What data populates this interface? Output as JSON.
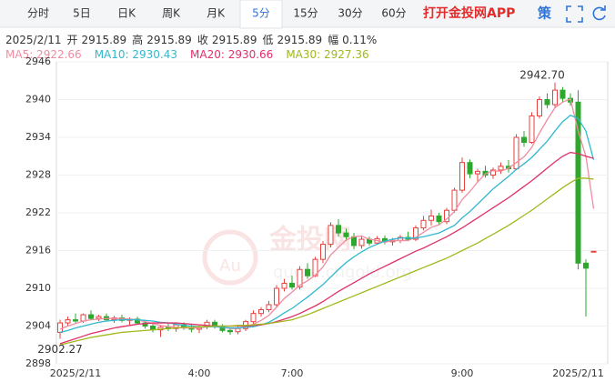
{
  "toolbar": {
    "tabs": [
      "分时",
      "5日",
      "日K",
      "周K",
      "月K",
      "5分",
      "15分",
      "30分",
      "60分"
    ],
    "active_tab": 5,
    "app_link": "打开金投网APP",
    "strategy": "策"
  },
  "info": {
    "date": "2025/2/11",
    "fields": [
      {
        "label": "开",
        "value": "2915.89"
      },
      {
        "label": "高",
        "value": "2915.89"
      },
      {
        "label": "收",
        "value": "2915.89"
      },
      {
        "label": "低",
        "value": "2915.89"
      },
      {
        "label": "幅",
        "value": "0.11%"
      }
    ]
  },
  "watermark": {
    "logo": "Au",
    "name": "金投网",
    "url": "quote.cngold.org"
  },
  "chart_data": {
    "type": "candlestick",
    "categories": [
      null,
      null,
      "2025/2/11",
      null,
      null,
      null,
      null,
      null,
      null,
      null,
      null,
      null,
      null,
      null,
      null,
      null,
      null,
      null,
      "4:00",
      null,
      null,
      null,
      null,
      null,
      null,
      null,
      null,
      null,
      null,
      null,
      "7:00",
      null,
      null,
      null,
      null,
      null,
      null,
      null,
      null,
      null,
      null,
      null,
      null,
      null,
      null,
      null,
      null,
      null,
      null,
      null,
      null,
      null,
      "9:00",
      null,
      null,
      null,
      null,
      null,
      null,
      null,
      null,
      null,
      null,
      null,
      null,
      null,
      null,
      "2025/2/11",
      null,
      null
    ],
    "candles": [
      [
        2903,
        2905,
        2902,
        2904.5
      ],
      [
        2904.5,
        2905.5,
        2904,
        2905
      ],
      [
        2905,
        2906,
        2904.5,
        2904.8
      ],
      [
        2904.8,
        2906,
        2904.5,
        2905.8
      ],
      [
        2905.8,
        2906.5,
        2905,
        2905.2
      ],
      [
        2905.2,
        2905.8,
        2904.8,
        2905.5
      ],
      [
        2905.5,
        2906,
        2904.8,
        2905
      ],
      [
        2905,
        2905.6,
        2904.5,
        2905.3
      ],
      [
        2905.3,
        2905.8,
        2904.6,
        2904.9
      ],
      [
        2904.9,
        2905.4,
        2904.2,
        2905.1
      ],
      [
        2905.1,
        2905.5,
        2904.3,
        2904.5
      ],
      [
        2904.5,
        2905,
        2903.6,
        2904
      ],
      [
        2904,
        2904.5,
        2903,
        2903.4
      ],
      [
        2903.4,
        2904,
        2902.27,
        2903.8
      ],
      [
        2903.8,
        2904.4,
        2903.2,
        2903.6
      ],
      [
        2903.6,
        2904.5,
        2903.1,
        2904.2
      ],
      [
        2904.2,
        2904.6,
        2903.4,
        2903.7
      ],
      [
        2903.7,
        2904.2,
        2903,
        2903.5
      ],
      [
        2903.5,
        2904.1,
        2902.9,
        2903.9
      ],
      [
        2903.9,
        2905,
        2903.5,
        2904.6
      ],
      [
        2904.6,
        2905,
        2903.6,
        2903.9
      ],
      [
        2903.9,
        2904.3,
        2903,
        2903.3
      ],
      [
        2903.3,
        2903.8,
        2902.6,
        2903.1
      ],
      [
        2903.1,
        2903.9,
        2902.7,
        2903.6
      ],
      [
        2903.6,
        2905,
        2903.2,
        2904.7
      ],
      [
        2904.7,
        2906.5,
        2904.4,
        2906
      ],
      [
        2906,
        2907,
        2905.5,
        2906.6
      ],
      [
        2906.6,
        2908,
        2906.2,
        2907.4
      ],
      [
        2907.4,
        2910.5,
        2907,
        2910
      ],
      [
        2910,
        2911.5,
        2909.5,
        2910.8
      ],
      [
        2910.8,
        2912,
        2909.8,
        2910.2
      ],
      [
        2910.2,
        2913.5,
        2909.8,
        2913
      ],
      [
        2913,
        2914,
        2911.5,
        2912
      ],
      [
        2912,
        2915,
        2911.8,
        2914.6
      ],
      [
        2914.6,
        2917.5,
        2914,
        2917
      ],
      [
        2917,
        2920.5,
        2916.5,
        2920
      ],
      [
        2920,
        2921,
        2918.2,
        2918.8
      ],
      [
        2918.8,
        2919.5,
        2917.5,
        2918.2
      ],
      [
        2918.2,
        2918.8,
        2916.2,
        2916.8
      ],
      [
        2916.8,
        2918.4,
        2916.3,
        2917.8
      ],
      [
        2917.8,
        2918.2,
        2916.8,
        2917.2
      ],
      [
        2917.2,
        2918.3,
        2916.9,
        2917.9
      ],
      [
        2917.9,
        2918.4,
        2917,
        2917.4
      ],
      [
        2917.4,
        2918,
        2916.8,
        2917.6
      ],
      [
        2917.6,
        2918.5,
        2917.2,
        2918.1
      ],
      [
        2918.1,
        2919,
        2917.5,
        2917.8
      ],
      [
        2917.8,
        2920,
        2917.5,
        2919.6
      ],
      [
        2919.6,
        2921.5,
        2919.2,
        2920.8
      ],
      [
        2920.8,
        2922.5,
        2920,
        2921.5
      ],
      [
        2921.5,
        2922,
        2920.2,
        2920.6
      ],
      [
        2920.6,
        2922.8,
        2920.2,
        2922.4
      ],
      [
        2922.4,
        2926,
        2922,
        2925.6
      ],
      [
        2925.6,
        2930.8,
        2925.2,
        2930
      ],
      [
        2930,
        2930.5,
        2927.5,
        2928.2
      ],
      [
        2928.2,
        2929,
        2927,
        2928.6
      ],
      [
        2928.6,
        2929.5,
        2927.6,
        2928
      ],
      [
        2928,
        2929.2,
        2927.4,
        2928.8
      ],
      [
        2928.8,
        2930,
        2928.2,
        2929.4
      ],
      [
        2929.4,
        2930.4,
        2928.4,
        2929
      ],
      [
        2929,
        2934.5,
        2928.8,
        2934
      ],
      [
        2934,
        2935,
        2932.5,
        2933.2
      ],
      [
        2933.2,
        2938,
        2933,
        2937.4
      ],
      [
        2937.4,
        2940.5,
        2937,
        2940
      ],
      [
        2940,
        2941,
        2938.6,
        2939.2
      ],
      [
        2939.2,
        2942.7,
        2938.8,
        2941.5
      ],
      [
        2941.5,
        2942,
        2939.5,
        2940.2
      ],
      [
        2940.2,
        2941,
        2939,
        2939.6
      ],
      [
        2939.6,
        2941.5,
        2913,
        2914
      ],
      [
        2914,
        2914.6,
        2905.5,
        2913.2
      ],
      [
        2915.89,
        2915.89,
        2915.89,
        2915.89
      ]
    ],
    "series": [
      {
        "name": "MA5: 2922.66",
        "color": "#f08ca0",
        "values": [
          2903.5,
          2904,
          2904.4,
          2904.8,
          2905,
          2905.1,
          2905.2,
          2905.2,
          2905.2,
          2905.1,
          2905,
          2904.7,
          2904.4,
          2904.1,
          2903.9,
          2903.8,
          2903.7,
          2903.7,
          2903.7,
          2903.9,
          2904,
          2903.8,
          2903.6,
          2903.6,
          2903.9,
          2904.3,
          2904.9,
          2905.7,
          2907,
          2908.4,
          2909.4,
          2910.5,
          2911.2,
          2912.1,
          2913.4,
          2915.3,
          2916.5,
          2917.7,
          2918.2,
          2918.3,
          2917.8,
          2917.6,
          2917.3,
          2917.6,
          2917.6,
          2917.6,
          2918.1,
          2918.9,
          2919.7,
          2920.1,
          2921,
          2922.2,
          2924.1,
          2925.4,
          2926.9,
          2928.2,
          2928.7,
          2928.6,
          2929.1,
          2930,
          2930.9,
          2932.4,
          2934.7,
          2936.8,
          2938.7,
          2939.6,
          2940.1,
          2935,
          2931,
          2922.66
        ]
      },
      {
        "name": "MA10: 2930.43",
        "color": "#30b8cf",
        "values": [
          2903,
          2903.3,
          2903.7,
          2904,
          2904.3,
          2904.6,
          2904.8,
          2904.9,
          2905,
          2905,
          2905,
          2904.9,
          2904.8,
          2904.6,
          2904.5,
          2904.3,
          2904.1,
          2904,
          2903.9,
          2903.9,
          2903.9,
          2903.8,
          2903.7,
          2903.7,
          2903.8,
          2903.9,
          2904.2,
          2904.6,
          2905.3,
          2906.1,
          2906.8,
          2907.7,
          2908.6,
          2909.6,
          2910.6,
          2911.8,
          2913,
          2914.1,
          2915,
          2915.8,
          2916.5,
          2917,
          2917.5,
          2917.8,
          2918,
          2918,
          2918,
          2918.2,
          2918.5,
          2918.8,
          2919.4,
          2920,
          2921.2,
          2922.2,
          2923.4,
          2924.6,
          2925.8,
          2926.8,
          2927.8,
          2928.9,
          2929.8,
          2930.8,
          2932.1,
          2933.4,
          2935,
          2936.5,
          2937.5,
          2937,
          2935,
          2930.43
        ]
      },
      {
        "name": "MA20: 2930.66",
        "color": "#e0306a",
        "values": [
          2901.2,
          2901.6,
          2902,
          2902.4,
          2902.8,
          2903.1,
          2903.4,
          2903.7,
          2903.9,
          2904.1,
          2904.3,
          2904.4,
          2904.5,
          2904.5,
          2904.5,
          2904.5,
          2904.4,
          2904.3,
          2904.2,
          2904.1,
          2904,
          2904,
          2904,
          2904,
          2904,
          2904.1,
          2904.2,
          2904.4,
          2904.7,
          2905.1,
          2905.5,
          2906,
          2906.6,
          2907.2,
          2907.9,
          2908.7,
          2909.5,
          2910.2,
          2910.9,
          2911.6,
          2912.3,
          2912.9,
          2913.5,
          2914.1,
          2914.7,
          2915.3,
          2915.9,
          2916.4,
          2917,
          2917.6,
          2918.2,
          2918.9,
          2919.6,
          2920.4,
          2921.2,
          2922,
          2922.8,
          2923.6,
          2924.4,
          2925.3,
          2926.2,
          2927.1,
          2928.1,
          2929.1,
          2930.1,
          2931,
          2931.6,
          2931.4,
          2931,
          2930.66
        ]
      },
      {
        "name": "MA30: 2927.36",
        "color": "#a2b81c",
        "values": [
          2901,
          2901.3,
          2901.6,
          2901.9,
          2902.2,
          2902.4,
          2902.6,
          2902.8,
          2903,
          2903.1,
          2903.2,
          2903.3,
          2903.4,
          2903.5,
          2903.6,
          2903.7,
          2903.8,
          2903.8,
          2903.9,
          2903.9,
          2904,
          2904,
          2904,
          2904.1,
          2904.1,
          2904.2,
          2904.3,
          2904.4,
          2904.6,
          2904.8,
          2905,
          2905.4,
          2905.8,
          2906.3,
          2906.8,
          2907.3,
          2907.8,
          2908.3,
          2908.8,
          2909.3,
          2909.8,
          2910.3,
          2910.8,
          2911.3,
          2911.8,
          2912.3,
          2912.8,
          2913.3,
          2913.8,
          2914.3,
          2914.8,
          2915.4,
          2916,
          2916.6,
          2917.2,
          2917.9,
          2918.6,
          2919.3,
          2920,
          2920.8,
          2921.6,
          2922.4,
          2923.3,
          2924.2,
          2925.1,
          2926,
          2926.8,
          2927.5,
          2927.5,
          2927.36
        ]
      }
    ],
    "up_color": "#e8413f",
    "down_color": "#2da82d",
    "annotations": {
      "high": "2942.70",
      "low": "2902.27"
    },
    "ylim": [
      2898,
      2946
    ],
    "yticks": [
      2898,
      2904,
      2910,
      2916,
      2922,
      2928,
      2934,
      2940,
      2946
    ],
    "grid": true
  }
}
